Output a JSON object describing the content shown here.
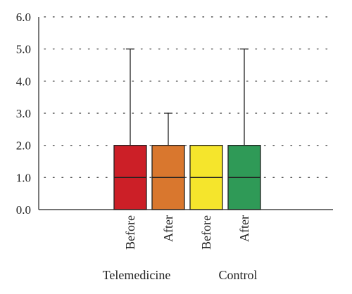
{
  "chart_data": {
    "type": "boxplot",
    "title": "",
    "xlabel": "",
    "ylabel": "",
    "ylim": [
      0,
      6
    ],
    "yticks": [
      "0.0",
      "1.0",
      "2.0",
      "3.0",
      "4.0",
      "5.0",
      "6.0"
    ],
    "grid": "dotted horizontal",
    "groups": [
      "Telemedicine",
      "Control"
    ],
    "categories": [
      "Before",
      "After",
      "Before",
      "After"
    ],
    "boxes": [
      {
        "category": "Before",
        "group": "Telemedicine",
        "color": "#cc1f27",
        "min": 0,
        "q1": 0,
        "median": 1,
        "q3": 2,
        "max": 5
      },
      {
        "category": "After",
        "group": "Telemedicine",
        "color": "#d9772e",
        "min": 0,
        "q1": 0,
        "median": 1,
        "q3": 2,
        "max": 3
      },
      {
        "category": "Before",
        "group": "Control",
        "color": "#f5e52c",
        "min": 0,
        "q1": 0,
        "median": 1,
        "q3": 2,
        "max": 2
      },
      {
        "category": "After",
        "group": "Control",
        "color": "#2f9a57",
        "min": 0,
        "q1": 0,
        "median": 1,
        "q3": 2,
        "max": 5
      }
    ]
  }
}
